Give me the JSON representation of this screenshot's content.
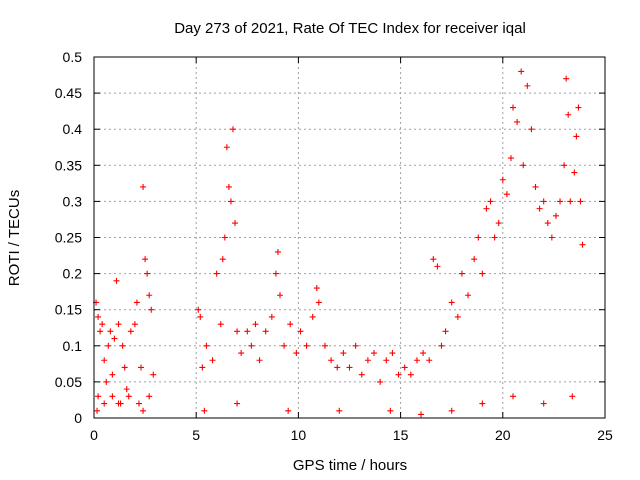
{
  "chart_data": {
    "type": "scatter",
    "title": "Day 273 of 2021, Rate Of TEC Index for receiver iqal",
    "xlabel": "GPS time / hours",
    "ylabel": "ROTI / TECUs",
    "xlim": [
      0,
      25
    ],
    "ylim": [
      0,
      0.5
    ],
    "xticks": [
      "0",
      "5",
      "10",
      "15",
      "20",
      "25"
    ],
    "yticks": [
      "0",
      "0.05",
      "0.1",
      "0.15",
      "0.2",
      "0.25",
      "0.3",
      "0.35",
      "0.4",
      "0.45",
      "0.5"
    ],
    "grid": true,
    "marker": "plus",
    "color": "#ff0000",
    "series": [
      {
        "points": [
          [
            0.1,
            0.16
          ],
          [
            0.2,
            0.14
          ],
          [
            0.3,
            0.12
          ],
          [
            0.4,
            0.13
          ],
          [
            0.5,
            0.08
          ],
          [
            0.6,
            0.05
          ],
          [
            0.7,
            0.1
          ],
          [
            0.8,
            0.12
          ],
          [
            0.9,
            0.06
          ],
          [
            1.0,
            0.11
          ],
          [
            1.1,
            0.19
          ],
          [
            1.2,
            0.13
          ],
          [
            1.4,
            0.1
          ],
          [
            1.5,
            0.07
          ],
          [
            1.6,
            0.04
          ],
          [
            1.8,
            0.12
          ],
          [
            2.0,
            0.13
          ],
          [
            2.1,
            0.16
          ],
          [
            2.3,
            0.07
          ],
          [
            2.4,
            0.32
          ],
          [
            2.5,
            0.22
          ],
          [
            2.6,
            0.2
          ],
          [
            2.7,
            0.17
          ],
          [
            2.8,
            0.15
          ],
          [
            2.9,
            0.06
          ],
          [
            0.2,
            0.03
          ],
          [
            0.5,
            0.02
          ],
          [
            0.9,
            0.03
          ],
          [
            1.3,
            0.02
          ],
          [
            1.7,
            0.03
          ],
          [
            2.2,
            0.02
          ],
          [
            2.7,
            0.03
          ],
          [
            5.1,
            0.15
          ],
          [
            5.2,
            0.14
          ],
          [
            5.3,
            0.07
          ],
          [
            5.5,
            0.1
          ],
          [
            5.8,
            0.08
          ],
          [
            6.0,
            0.2
          ],
          [
            6.2,
            0.13
          ],
          [
            6.3,
            0.22
          ],
          [
            6.4,
            0.25
          ],
          [
            6.5,
            0.375
          ],
          [
            6.6,
            0.32
          ],
          [
            6.7,
            0.3
          ],
          [
            6.8,
            0.4
          ],
          [
            6.9,
            0.27
          ],
          [
            7.0,
            0.12
          ],
          [
            7.2,
            0.09
          ],
          [
            7.5,
            0.12
          ],
          [
            7.7,
            0.1
          ],
          [
            7.9,
            0.13
          ],
          [
            8.1,
            0.08
          ],
          [
            8.4,
            0.12
          ],
          [
            8.7,
            0.14
          ],
          [
            8.9,
            0.2
          ],
          [
            9.0,
            0.23
          ],
          [
            9.1,
            0.17
          ],
          [
            9.3,
            0.1
          ],
          [
            9.6,
            0.13
          ],
          [
            9.9,
            0.09
          ],
          [
            10.1,
            0.12
          ],
          [
            10.4,
            0.1
          ],
          [
            10.7,
            0.14
          ],
          [
            10.9,
            0.18
          ],
          [
            11.0,
            0.16
          ],
          [
            11.3,
            0.1
          ],
          [
            11.6,
            0.08
          ],
          [
            11.9,
            0.07
          ],
          [
            12.2,
            0.09
          ],
          [
            12.5,
            0.07
          ],
          [
            12.8,
            0.1
          ],
          [
            13.1,
            0.06
          ],
          [
            13.4,
            0.08
          ],
          [
            13.7,
            0.09
          ],
          [
            14.0,
            0.05
          ],
          [
            14.3,
            0.08
          ],
          [
            14.6,
            0.09
          ],
          [
            14.9,
            0.06
          ],
          [
            15.2,
            0.07
          ],
          [
            15.5,
            0.06
          ],
          [
            15.8,
            0.08
          ],
          [
            16.1,
            0.09
          ],
          [
            16.4,
            0.08
          ],
          [
            16.6,
            0.22
          ],
          [
            16.8,
            0.21
          ],
          [
            17.0,
            0.1
          ],
          [
            17.2,
            0.12
          ],
          [
            17.5,
            0.16
          ],
          [
            17.8,
            0.14
          ],
          [
            18.0,
            0.2
          ],
          [
            18.3,
            0.17
          ],
          [
            18.6,
            0.22
          ],
          [
            18.8,
            0.25
          ],
          [
            19.0,
            0.2
          ],
          [
            19.2,
            0.29
          ],
          [
            19.4,
            0.3
          ],
          [
            19.6,
            0.25
          ],
          [
            19.8,
            0.27
          ],
          [
            20.0,
            0.33
          ],
          [
            20.2,
            0.31
          ],
          [
            20.4,
            0.36
          ],
          [
            20.5,
            0.43
          ],
          [
            20.7,
            0.41
          ],
          [
            20.9,
            0.48
          ],
          [
            21.0,
            0.35
          ],
          [
            21.2,
            0.46
          ],
          [
            21.4,
            0.4
          ],
          [
            21.6,
            0.32
          ],
          [
            21.8,
            0.29
          ],
          [
            22.0,
            0.3
          ],
          [
            22.2,
            0.27
          ],
          [
            22.4,
            0.25
          ],
          [
            22.6,
            0.28
          ],
          [
            22.8,
            0.3
          ],
          [
            23.0,
            0.35
          ],
          [
            23.1,
            0.47
          ],
          [
            23.2,
            0.42
          ],
          [
            23.3,
            0.3
          ],
          [
            23.5,
            0.34
          ],
          [
            23.6,
            0.39
          ],
          [
            23.7,
            0.43
          ],
          [
            23.8,
            0.3
          ],
          [
            23.9,
            0.24
          ],
          [
            0.15,
            0.01
          ],
          [
            1.2,
            0.02
          ],
          [
            2.4,
            0.01
          ],
          [
            5.4,
            0.01
          ],
          [
            7.0,
            0.02
          ],
          [
            9.5,
            0.01
          ],
          [
            12.0,
            0.01
          ],
          [
            14.5,
            0.01
          ],
          [
            16.0,
            0.005
          ],
          [
            17.5,
            0.01
          ],
          [
            19.0,
            0.02
          ],
          [
            20.5,
            0.03
          ],
          [
            22.0,
            0.02
          ],
          [
            23.4,
            0.03
          ]
        ]
      }
    ]
  }
}
